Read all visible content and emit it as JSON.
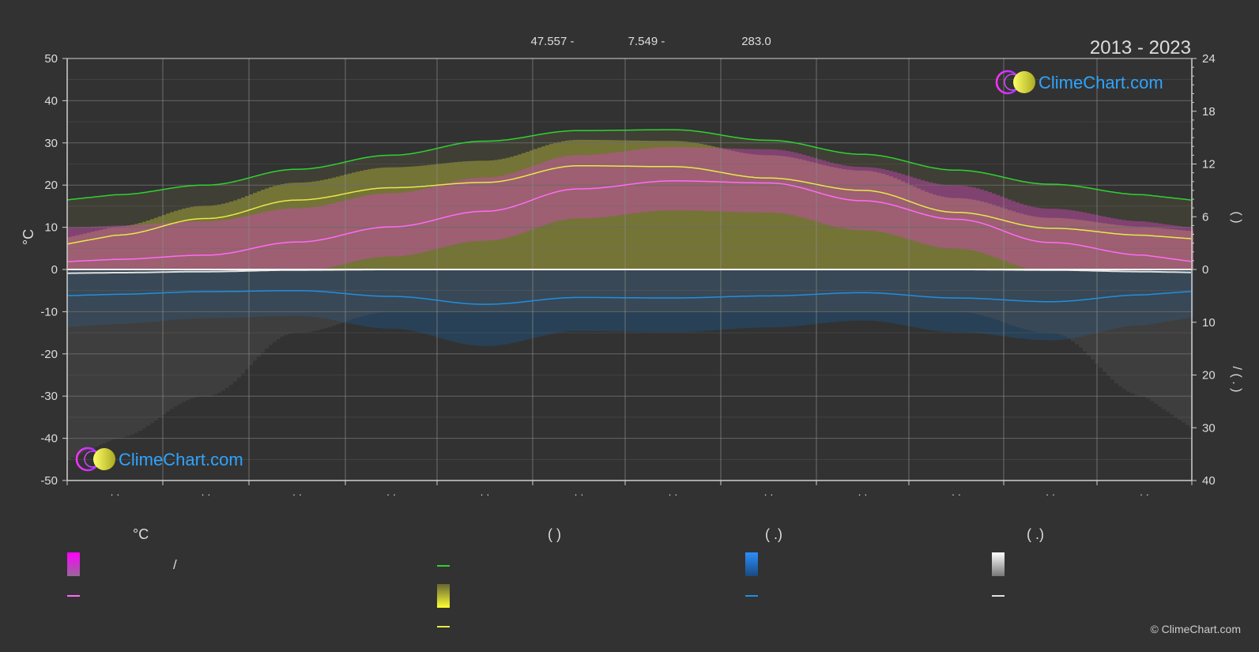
{
  "header": {
    "lat_label": "47.557 -",
    "lon_label": "7.549 -",
    "elev_label": "283.0",
    "period": "2013 - 2023"
  },
  "logo": {
    "text": "ClimeChart.com"
  },
  "copyright": "© ClimeChart.com",
  "legend": {
    "col1_head": "°C",
    "col1_label1": "/",
    "col2_head": "(          )",
    "col3_head": "(   .)",
    "col4_head": "(   .)"
  },
  "colors": {
    "background": "#323232",
    "daylight": "#2fd22f",
    "sunshine": "#e8e84a",
    "temperature": "#ff6bf5",
    "temperature_fill": "#d048b8",
    "sunshine_fill": "#b5b53a",
    "precipitation": "#1f8fe0",
    "snow": "#e0e0e0",
    "axis": "#d0d0d0",
    "grid": "#6a6a6a"
  },
  "chart_data": {
    "type": "area",
    "left_axis": {
      "label": "°C",
      "ylim": [
        -50,
        50
      ],
      "ticks": [
        "50",
        "40",
        "30",
        "20",
        "10",
        "0",
        "-10",
        "-20",
        "-30",
        "-40",
        "-50"
      ]
    },
    "right_axis_top": {
      "ylim": [
        0,
        24
      ],
      "ticks": [
        "24",
        "18",
        "12",
        "6",
        "0"
      ],
      "label": "(   )"
    },
    "right_axis_bottom": {
      "ylim": [
        0,
        40
      ],
      "ticks": [
        "10",
        "20",
        "30",
        "40"
      ],
      "label": "/  (  .  )"
    },
    "months": [
      "· ·",
      "· ·",
      "· ·",
      "· ·",
      "· ·",
      "· ·",
      "· ·",
      "· ·",
      "· ·",
      "· ·",
      "· ·",
      "· ·"
    ],
    "grid": true,
    "series": [
      {
        "key": "daylight",
        "axis": "right_top",
        "values": [
          8.5,
          9.6,
          11.4,
          13.0,
          14.6,
          15.8,
          15.9,
          14.7,
          13.1,
          11.3,
          9.7,
          8.5
        ]
      },
      {
        "key": "sunshine",
        "axis": "right_top",
        "values": [
          3.9,
          5.8,
          7.9,
          9.3,
          9.9,
          11.8,
          11.7,
          10.4,
          9.0,
          6.5,
          4.7,
          3.9
        ]
      },
      {
        "key": "temperature",
        "axis": "left",
        "values": [
          2.4,
          3.4,
          6.5,
          10.1,
          13.8,
          19.1,
          21.0,
          20.5,
          16.3,
          11.9,
          6.4,
          3.4
        ]
      },
      {
        "key": "precipitation",
        "axis": "right_bottom",
        "values": [
          4.7,
          4.2,
          4.0,
          5.1,
          6.6,
          5.3,
          5.4,
          5.0,
          4.4,
          5.4,
          6.1,
          4.8
        ]
      },
      {
        "key": "snow",
        "axis": "right_bottom",
        "values": [
          0.6,
          0.4,
          0.1,
          0.0,
          0.0,
          0.0,
          0.0,
          0.0,
          0.0,
          0.0,
          0.1,
          0.4
        ]
      }
    ]
  }
}
